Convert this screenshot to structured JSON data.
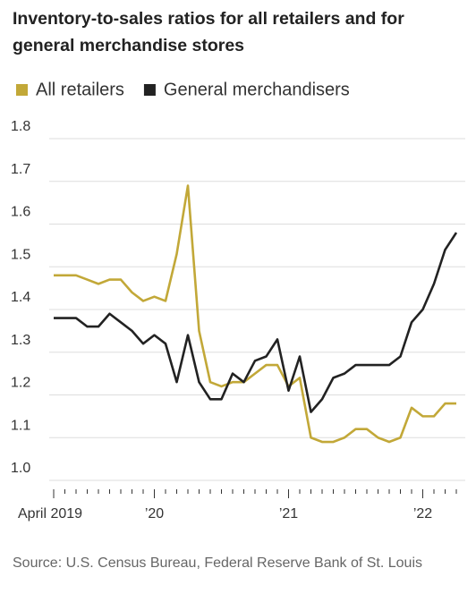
{
  "chart_data": {
    "type": "line",
    "title": "Inventory-to-sales ratios for all retailers and for general merchandise stores",
    "source": "Source: U.S. Census Bureau, Federal Reserve Bank of St. Louis",
    "categories": [
      "April 2019",
      null,
      null,
      null,
      null,
      null,
      null,
      null,
      null,
      "’20",
      null,
      null,
      null,
      null,
      null,
      null,
      null,
      null,
      null,
      null,
      null,
      "’21",
      null,
      null,
      null,
      null,
      null,
      null,
      null,
      null,
      null,
      null,
      null,
      "’22",
      null,
      null,
      null
    ],
    "series": [
      {
        "name": "All retailers",
        "color": "#c2a838",
        "values": [
          1.48,
          1.48,
          1.48,
          1.47,
          1.46,
          1.47,
          1.47,
          1.44,
          1.42,
          1.43,
          1.42,
          1.53,
          1.69,
          1.35,
          1.23,
          1.22,
          1.23,
          1.23,
          1.25,
          1.27,
          1.27,
          1.22,
          1.24,
          1.1,
          1.09,
          1.09,
          1.1,
          1.12,
          1.12,
          1.1,
          1.09,
          1.1,
          1.17,
          1.15,
          1.15,
          1.18,
          1.18
        ]
      },
      {
        "name": "General merchandisers",
        "color": "#222222",
        "values": [
          1.38,
          1.38,
          1.38,
          1.36,
          1.36,
          1.39,
          1.37,
          1.35,
          1.32,
          1.34,
          1.32,
          1.23,
          1.34,
          1.23,
          1.19,
          1.19,
          1.25,
          1.23,
          1.28,
          1.29,
          1.33,
          1.21,
          1.29,
          1.16,
          1.19,
          1.24,
          1.25,
          1.27,
          1.27,
          1.27,
          1.27,
          1.29,
          1.37,
          1.4,
          1.46,
          1.54,
          1.58
        ]
      }
    ],
    "ylim": [
      1.0,
      1.8
    ],
    "yticks": [
      {
        "value": 1.0,
        "label": "1.0"
      },
      1.1,
      1.2,
      1.3,
      1.4,
      1.5,
      1.6,
      1.7,
      1.8
    ],
    "grid": true
  }
}
